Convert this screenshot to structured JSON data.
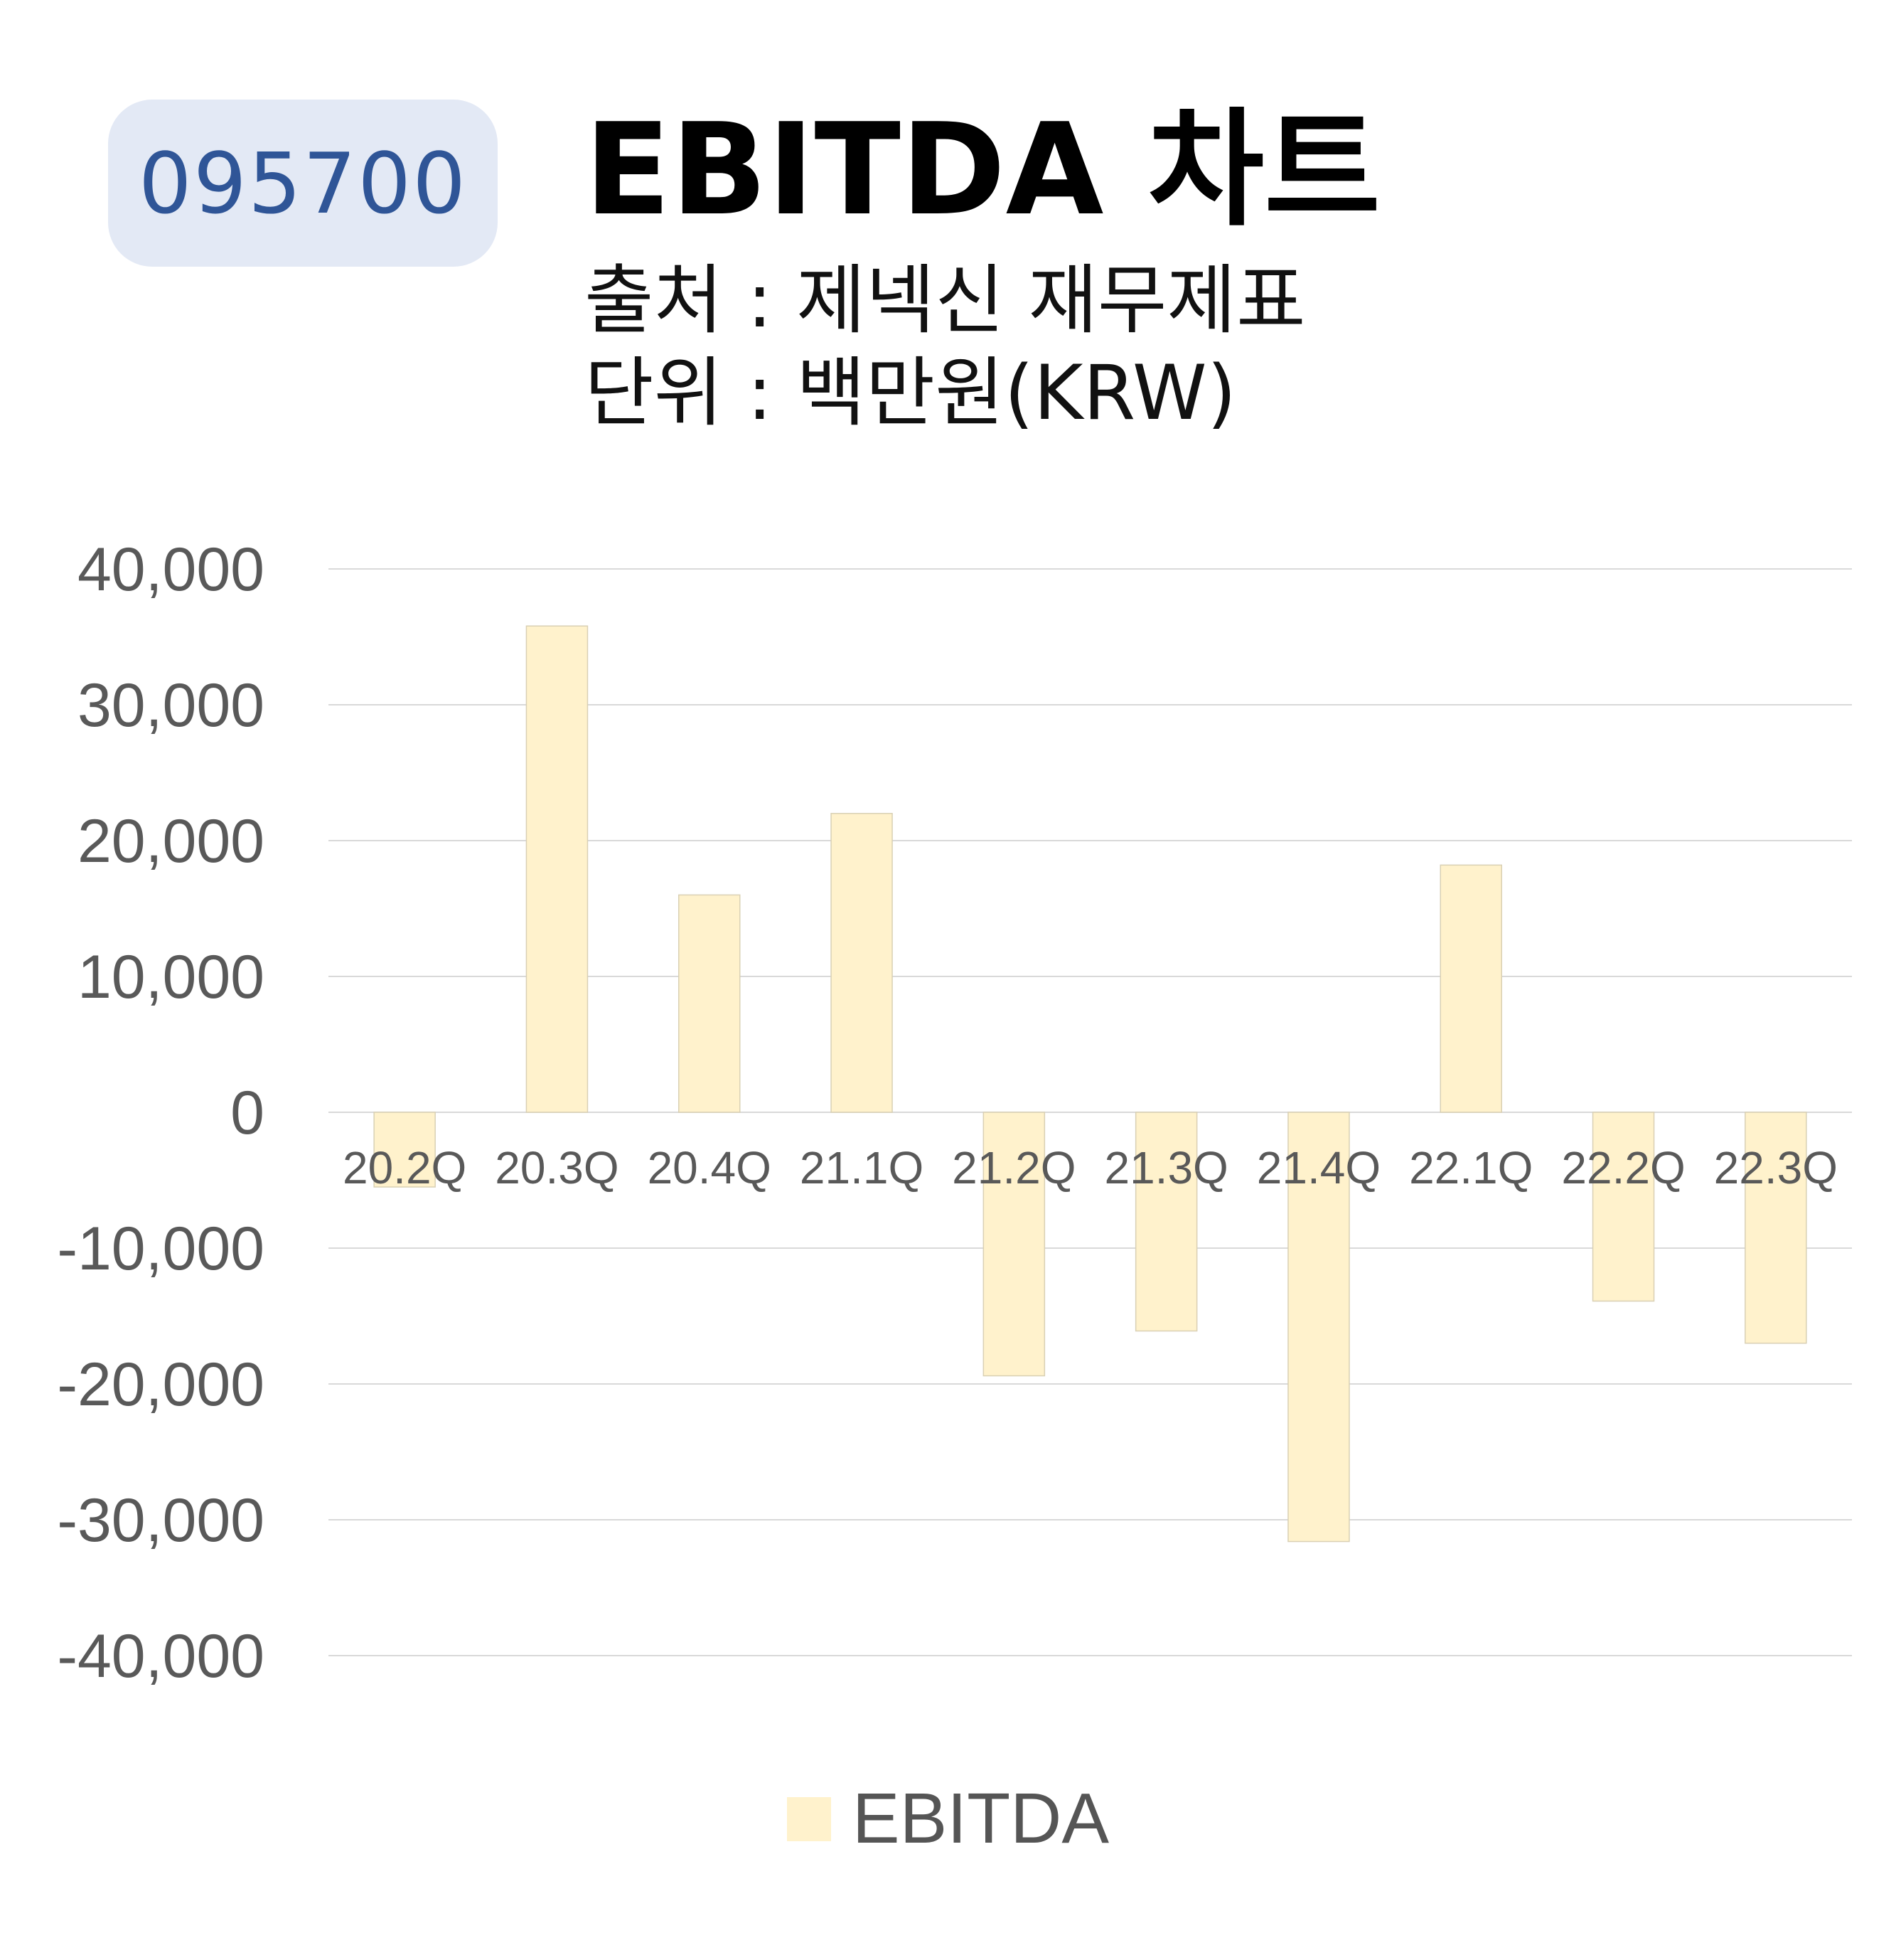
{
  "ticker": "095700",
  "title": "EBITDA 차트",
  "source": "출처 : 제넥신 재무제표",
  "unit": "단위 : 백만원(KRW)",
  "colors": {
    "bar": "#fff2cc",
    "bar_edge": "#d9d0b4",
    "grid": "#d9d9d9",
    "tick_text": "#595959",
    "ticker_bg": "#e3e9f5",
    "ticker_text": "#2f5597"
  },
  "chart_data": {
    "type": "bar",
    "categories": [
      "20.2Q",
      "20.3Q",
      "20.4Q",
      "21.1Q",
      "21.2Q",
      "21.3Q",
      "21.4Q",
      "22.1Q",
      "22.2Q",
      "22.3Q"
    ],
    "series": [
      {
        "name": "EBITDA",
        "values": [
          -5500,
          35800,
          16000,
          22000,
          -19400,
          -16100,
          -31600,
          18200,
          -13900,
          -17000
        ]
      }
    ],
    "ylim": [
      -40000,
      40000
    ],
    "yticks": [
      "40,000",
      "30,000",
      "20,000",
      "10,000",
      "0",
      "-10,000",
      "-20,000",
      "-30,000",
      "-40,000"
    ],
    "ytick_values": [
      40000,
      30000,
      20000,
      10000,
      0,
      -10000,
      -20000,
      -30000,
      -40000
    ],
    "grid": true,
    "legend": {
      "position": "bottom",
      "entries": [
        "EBITDA"
      ]
    }
  }
}
